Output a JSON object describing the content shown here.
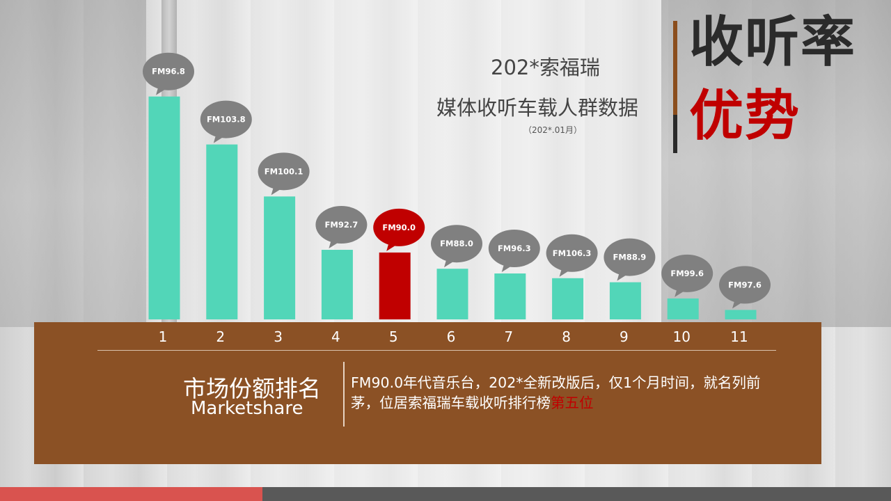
{
  "header": {
    "subtitle_line1": "202*索福瑞",
    "subtitle_line2": "媒体收听车载人群数据",
    "subtitle_date": "（202*.01月）",
    "title_line1": "收听率",
    "title_line2": "优势"
  },
  "colors": {
    "bar": "#52d6b8",
    "bar_highlight": "#c00000",
    "bubble": "#808080",
    "bubble_highlight": "#c00000",
    "panel": "#8b5125",
    "title_dark": "#2b2b2b",
    "title_red": "#c00000"
  },
  "chart_data": {
    "type": "bar",
    "categories": [
      "1",
      "2",
      "3",
      "4",
      "5",
      "6",
      "7",
      "8",
      "9",
      "10",
      "11"
    ],
    "values": [
      330,
      259,
      182,
      103,
      99,
      75,
      68,
      61,
      55,
      31,
      14
    ],
    "bar_labels": [
      "FM96.8",
      "FM103.8",
      "FM100.1",
      "FM92.7",
      "FM90.0",
      "FM88.0",
      "FM96.3",
      "FM106.3",
      "FM88.9",
      "FM99.6",
      "FM97.6"
    ],
    "highlight_index": 4,
    "title": "",
    "xlabel": "",
    "ylabel": "",
    "ylim": [
      0,
      340
    ],
    "grid": false,
    "legend": "none"
  },
  "panel": {
    "label_cn": "市场份额排名",
    "label_en": "Marketshare",
    "desc_text": "FM90.0年代音乐台，202*全新改版后，仅1个月时间，就名列前茅，位居索福瑞车载收听排行榜",
    "desc_highlight": "第五位"
  }
}
